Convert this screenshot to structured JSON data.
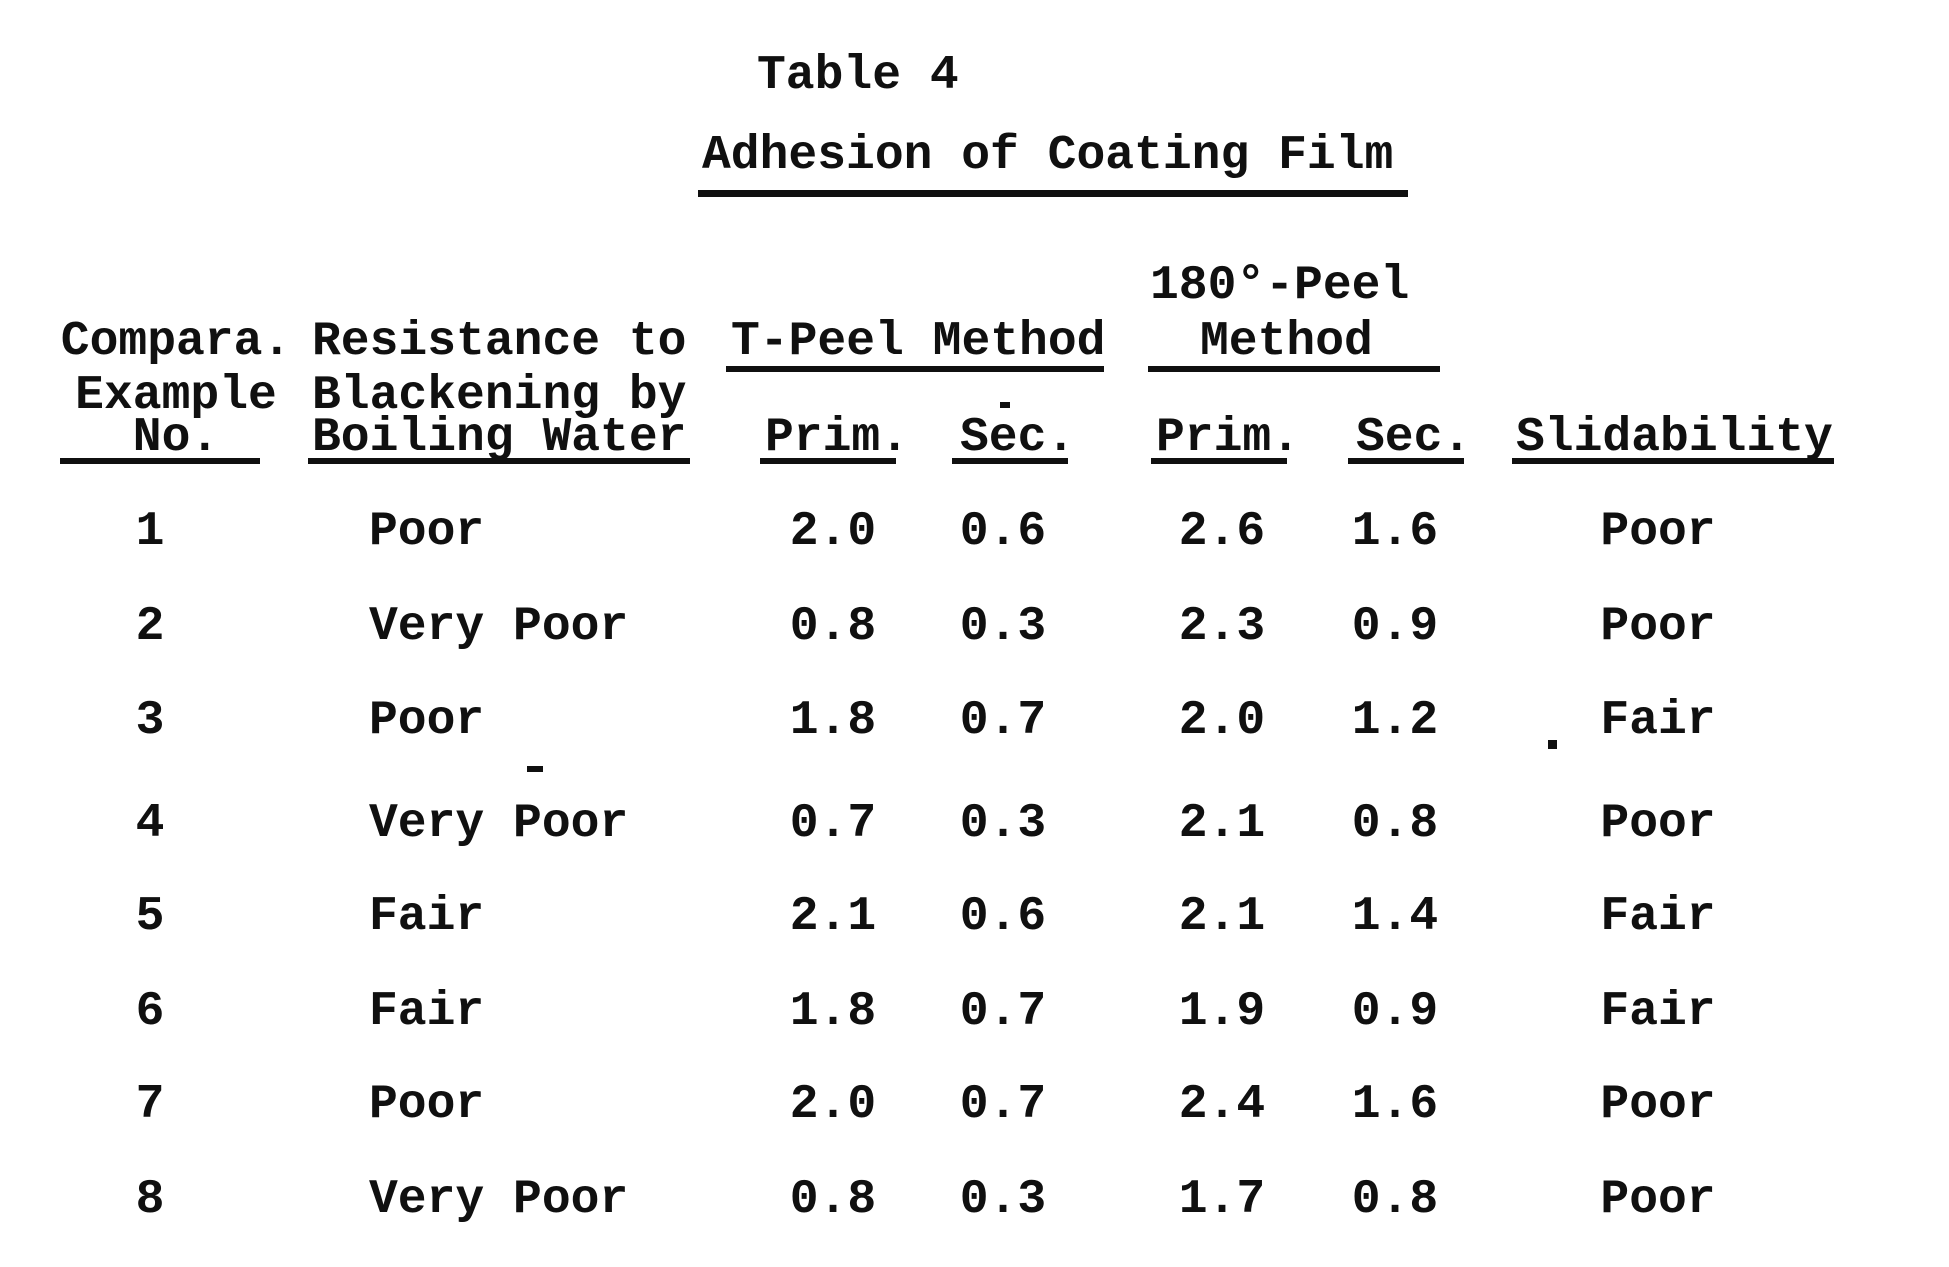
{
  "page": {
    "title": "Table 4",
    "subtitle": "Adhesion of Coating Film"
  },
  "table": {
    "header": {
      "example_col": {
        "line1": "Compara.",
        "line2": "Example",
        "line3": "No."
      },
      "resistance_col": {
        "line1": "Resistance to",
        "line2": "Blackening by",
        "line3": "Boiling Water"
      },
      "tpeel_group": "T-Peel Method",
      "peel180_group": {
        "line1": "180°-Peel",
        "line2": "Method"
      },
      "tpeel_prim": "Prim.",
      "tpeel_sec": "Sec.",
      "peel180_prim": "Prim.",
      "peel180_sec": "Sec.",
      "slidability_col": "Slidability"
    },
    "rows": [
      {
        "no": "1",
        "resistance": "Poor",
        "t_prim": "2.0",
        "t_sec": "0.6",
        "p180_prim": "2.6",
        "p180_sec": "1.6",
        "slidability": "Poor"
      },
      {
        "no": "2",
        "resistance": "Very Poor",
        "t_prim": "0.8",
        "t_sec": "0.3",
        "p180_prim": "2.3",
        "p180_sec": "0.9",
        "slidability": "Poor"
      },
      {
        "no": "3",
        "resistance": "Poor",
        "t_prim": "1.8",
        "t_sec": "0.7",
        "p180_prim": "2.0",
        "p180_sec": "1.2",
        "slidability": "Fair"
      },
      {
        "no": "4",
        "resistance": "Very Poor",
        "t_prim": "0.7",
        "t_sec": "0.3",
        "p180_prim": "2.1",
        "p180_sec": "0.8",
        "slidability": "Poor"
      },
      {
        "no": "5",
        "resistance": "Fair",
        "t_prim": "2.1",
        "t_sec": "0.6",
        "p180_prim": "2.1",
        "p180_sec": "1.4",
        "slidability": "Fair"
      },
      {
        "no": "6",
        "resistance": "Fair",
        "t_prim": "1.8",
        "t_sec": "0.7",
        "p180_prim": "1.9",
        "p180_sec": "0.9",
        "slidability": "Fair"
      },
      {
        "no": "7",
        "resistance": "Poor",
        "t_prim": "2.0",
        "t_sec": "0.7",
        "p180_prim": "2.4",
        "p180_sec": "1.6",
        "slidability": "Poor"
      },
      {
        "no": "8",
        "resistance": "Very Poor",
        "t_prim": "0.8",
        "t_sec": "0.3",
        "p180_prim": "1.7",
        "p180_sec": "0.8",
        "slidability": "Poor"
      }
    ]
  },
  "colors": {
    "ink": "#101010",
    "paper": "#ffffff"
  }
}
